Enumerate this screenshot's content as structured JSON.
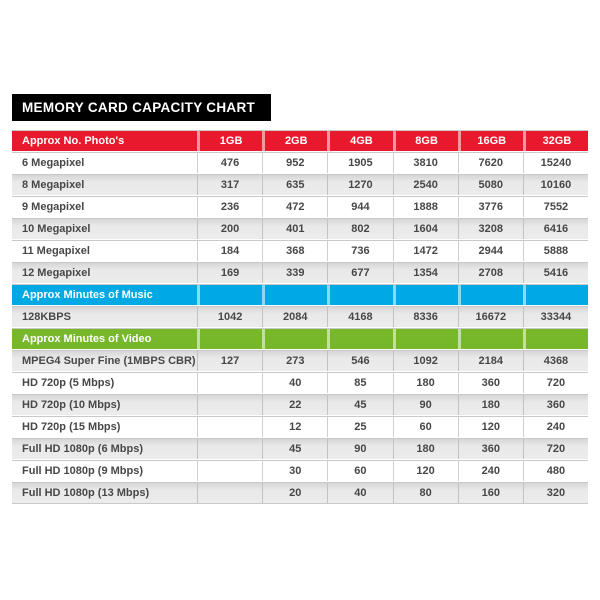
{
  "title": "MEMORY CARD CAPACITY CHART",
  "colors": {
    "title_bg": "#000000",
    "photos_header": "#e8192c",
    "music_header": "#00a9e3",
    "video_header": "#76b82a",
    "shaded_row": "#e4e4e4",
    "text": "#474747"
  },
  "chart_data": {
    "type": "table",
    "title": "MEMORY CARD CAPACITY CHART",
    "columns": [
      "1GB",
      "2GB",
      "4GB",
      "8GB",
      "16GB",
      "32GB"
    ],
    "sections": [
      {
        "header": "Approx No. Photo's",
        "color": "#e8192c",
        "first_row_shaded": false,
        "rows": [
          {
            "label": "6 Megapixel",
            "values": [
              "476",
              "952",
              "1905",
              "3810",
              "7620",
              "15240"
            ]
          },
          {
            "label": "8 Megapixel",
            "values": [
              "317",
              "635",
              "1270",
              "2540",
              "5080",
              "10160"
            ]
          },
          {
            "label": "9 Megapixel",
            "values": [
              "236",
              "472",
              "944",
              "1888",
              "3776",
              "7552"
            ]
          },
          {
            "label": "10 Megapixel",
            "values": [
              "200",
              "401",
              "802",
              "1604",
              "3208",
              "6416"
            ]
          },
          {
            "label": "11 Megapixel",
            "values": [
              "184",
              "368",
              "736",
              "1472",
              "2944",
              "5888"
            ]
          },
          {
            "label": "12 Megapixel",
            "values": [
              "169",
              "339",
              "677",
              "1354",
              "2708",
              "5416"
            ]
          }
        ]
      },
      {
        "header": "Approx Minutes of Music",
        "color": "#00a9e3",
        "first_row_shaded": true,
        "rows": [
          {
            "label": "128KBPS",
            "values": [
              "1042",
              "2084",
              "4168",
              "8336",
              "16672",
              "33344"
            ]
          }
        ]
      },
      {
        "header": "Approx Minutes of Video",
        "color": "#76b82a",
        "first_row_shaded": true,
        "rows": [
          {
            "label": "MPEG4 Super Fine (1MBPS CBR)",
            "values": [
              "127",
              "273",
              "546",
              "1092",
              "2184",
              "4368"
            ]
          },
          {
            "label": "HD 720p (5 Mbps)",
            "values": [
              "",
              "40",
              "85",
              "180",
              "360",
              "720"
            ]
          },
          {
            "label": "HD 720p (10 Mbps)",
            "values": [
              "",
              "22",
              "45",
              "90",
              "180",
              "360"
            ]
          },
          {
            "label": "HD 720p (15 Mbps)",
            "values": [
              "",
              "12",
              "25",
              "60",
              "120",
              "240"
            ]
          },
          {
            "label": "Full HD 1080p (6 Mbps)",
            "values": [
              "",
              "45",
              "90",
              "180",
              "360",
              "720"
            ]
          },
          {
            "label": "Full HD 1080p (9 Mbps)",
            "values": [
              "",
              "30",
              "60",
              "120",
              "240",
              "480"
            ]
          },
          {
            "label": "Full HD 1080p (13 Mbps)",
            "values": [
              "",
              "20",
              "40",
              "80",
              "160",
              "320"
            ]
          }
        ]
      }
    ]
  }
}
